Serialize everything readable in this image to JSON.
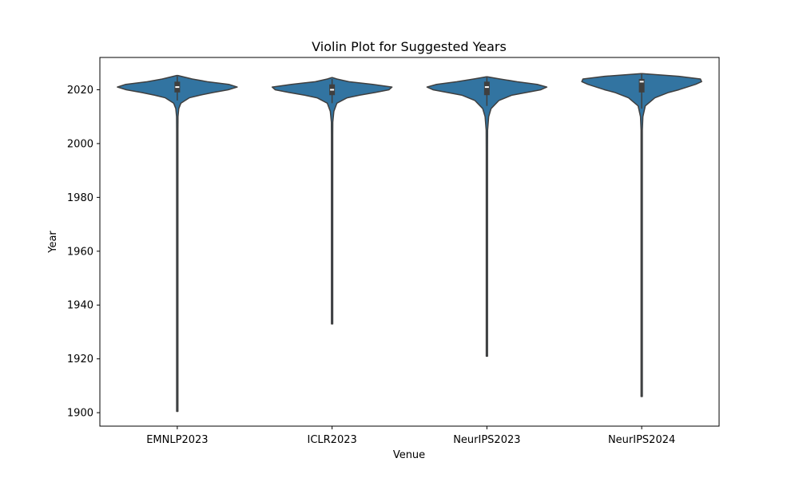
{
  "chart_data": {
    "type": "violin",
    "title": "Violin Plot for Suggested Years",
    "xlabel": "Venue",
    "ylabel": "Year",
    "categories": [
      "EMNLP2023",
      "ICLR2023",
      "NeurIPS2023",
      "NeurIPS2024"
    ],
    "ylim": [
      1895,
      2032
    ],
    "yticks": [
      1900,
      1920,
      1940,
      1960,
      1980,
      2000,
      2020
    ],
    "grid": false,
    "legend": "none",
    "colors": {
      "violin_fill": "#3274a1",
      "violin_edge": "#3f3f3f",
      "box": "#3f3f3f",
      "median": "#ffffff"
    },
    "violins": [
      {
        "category": "EMNLP2023",
        "min": 1900.5,
        "max": 2025.3,
        "q1": 2019,
        "median": 2021,
        "q3": 2023,
        "whisker_low": 2016,
        "whisker_high": 2025,
        "profile": [
          [
            1900.5,
            0
          ],
          [
            1999,
            0.003
          ],
          [
            2005,
            0.006
          ],
          [
            2010,
            0.012
          ],
          [
            2013,
            0.025
          ],
          [
            2015,
            0.06
          ],
          [
            2017,
            0.2
          ],
          [
            2018,
            0.38
          ],
          [
            2019,
            0.6
          ],
          [
            2020,
            0.85
          ],
          [
            2021,
            1.0
          ],
          [
            2022,
            0.86
          ],
          [
            2023,
            0.5
          ],
          [
            2024,
            0.25
          ],
          [
            2025.3,
            0
          ]
        ]
      },
      {
        "category": "ICLR2023",
        "min": 1933,
        "max": 2024.5,
        "q1": 2018,
        "median": 2020,
        "q3": 2022,
        "whisker_low": 2015,
        "whisker_high": 2024,
        "profile": [
          [
            1933,
            0
          ],
          [
            1995,
            0.003
          ],
          [
            2003,
            0.006
          ],
          [
            2008,
            0.012
          ],
          [
            2012,
            0.03
          ],
          [
            2015,
            0.08
          ],
          [
            2017,
            0.25
          ],
          [
            2018,
            0.46
          ],
          [
            2019,
            0.72
          ],
          [
            2020,
            0.95
          ],
          [
            2021,
            1.0
          ],
          [
            2022,
            0.68
          ],
          [
            2023,
            0.28
          ],
          [
            2024,
            0.08
          ],
          [
            2024.5,
            0
          ]
        ]
      },
      {
        "category": "NeurIPS2023",
        "min": 1921,
        "max": 2024.8,
        "q1": 2018,
        "median": 2021,
        "q3": 2023,
        "whisker_low": 2014,
        "whisker_high": 2024.8,
        "profile": [
          [
            1921,
            0
          ],
          [
            1986,
            0.003
          ],
          [
            1997,
            0.006
          ],
          [
            2005,
            0.012
          ],
          [
            2010,
            0.03
          ],
          [
            2013,
            0.07
          ],
          [
            2016,
            0.2
          ],
          [
            2018,
            0.42
          ],
          [
            2019,
            0.66
          ],
          [
            2020,
            0.9
          ],
          [
            2021,
            1.0
          ],
          [
            2022,
            0.84
          ],
          [
            2023,
            0.5
          ],
          [
            2024,
            0.22
          ],
          [
            2024.8,
            0
          ]
        ]
      },
      {
        "category": "NeurIPS2024",
        "min": 1906,
        "max": 2026,
        "q1": 2019,
        "median": 2023,
        "q3": 2024,
        "whisker_low": 2013,
        "whisker_high": 2026,
        "profile": [
          [
            1906,
            0
          ],
          [
            2000,
            0.004
          ],
          [
            2005,
            0.008
          ],
          [
            2010,
            0.02
          ],
          [
            2014,
            0.06
          ],
          [
            2017,
            0.22
          ],
          [
            2019,
            0.45
          ],
          [
            2020,
            0.62
          ],
          [
            2021,
            0.76
          ],
          [
            2022,
            0.9
          ],
          [
            2023,
            1.0
          ],
          [
            2024,
            0.98
          ],
          [
            2025,
            0.62
          ],
          [
            2026,
            0
          ]
        ]
      }
    ]
  }
}
